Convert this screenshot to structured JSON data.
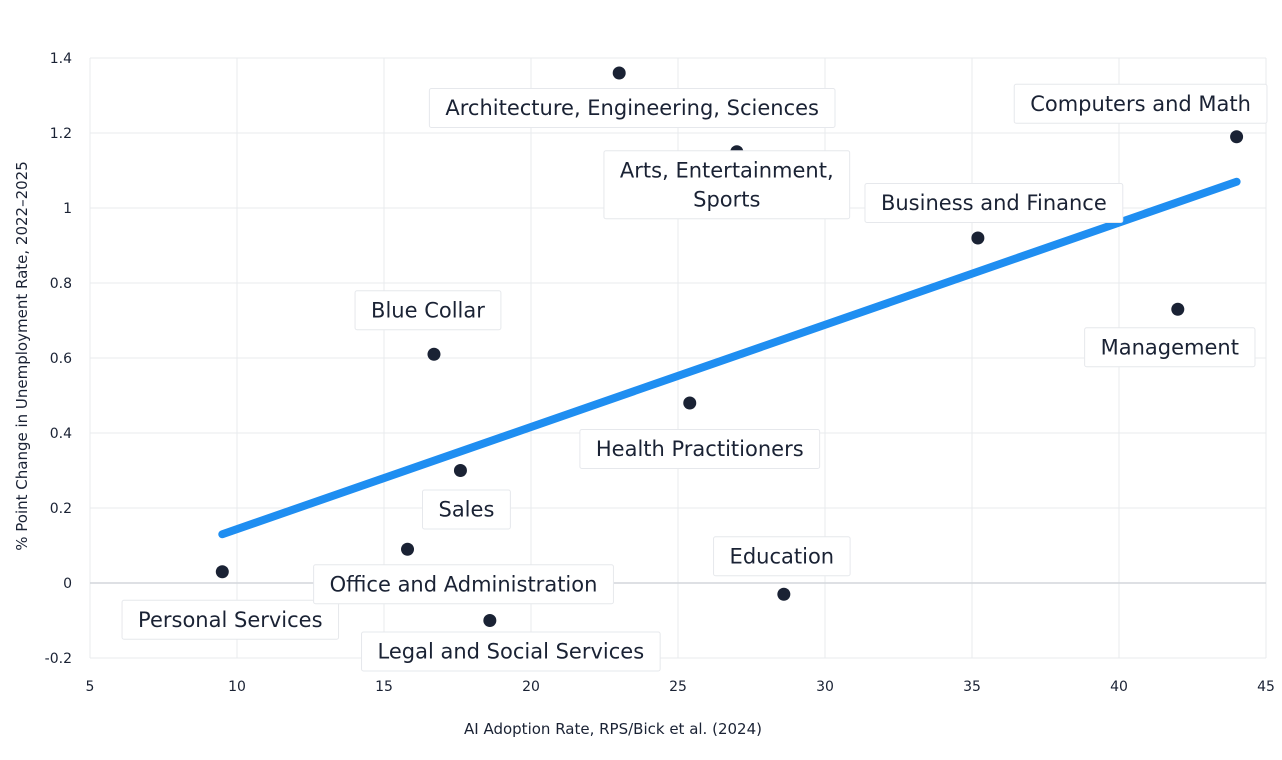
{
  "chart_data": {
    "type": "scatter",
    "title": "",
    "xlabel": "AI Adoption Rate, RPS/Bick et al. (2024)",
    "ylabel": "% Point Change in Unemployment Rate, 2022–2025",
    "xlim": [
      5,
      45
    ],
    "ylim": [
      -0.2,
      1.4
    ],
    "xticks": [
      5,
      10,
      15,
      20,
      25,
      30,
      35,
      40,
      45
    ],
    "yticks": [
      -0.2,
      0,
      0.2,
      0.4,
      0.6,
      0.8,
      1,
      1.2,
      1.4
    ],
    "grid": true,
    "colors": {
      "point": "#1a2234",
      "trend": "#1f8ef1",
      "text": "#1a2234"
    },
    "points": [
      {
        "label": "Personal Services",
        "x": 9.5,
        "y": 0.03
      },
      {
        "label": "Office and Administration",
        "x": 15.8,
        "y": 0.09
      },
      {
        "label": "Blue Collar",
        "x": 16.7,
        "y": 0.61
      },
      {
        "label": "Sales",
        "x": 17.6,
        "y": 0.3
      },
      {
        "label": "Legal and Social Services",
        "x": 18.6,
        "y": -0.1
      },
      {
        "label": "Architecture, Engineering, Sciences",
        "x": 23.0,
        "y": 1.36
      },
      {
        "label": "Health Practitioners",
        "x": 25.4,
        "y": 0.48
      },
      {
        "label": "Arts, Entertainment, Sports",
        "x": 27.0,
        "y": 1.15
      },
      {
        "label": "Education",
        "x": 28.6,
        "y": -0.03
      },
      {
        "label": "Business and Finance",
        "x": 35.2,
        "y": 0.92
      },
      {
        "label": "Management",
        "x": 42.0,
        "y": 0.73
      },
      {
        "label": "Computers and Math",
        "x": 44.0,
        "y": 1.19
      }
    ],
    "trendline": {
      "x": [
        9.5,
        44.0
      ],
      "y": [
        0.13,
        1.07
      ]
    }
  }
}
